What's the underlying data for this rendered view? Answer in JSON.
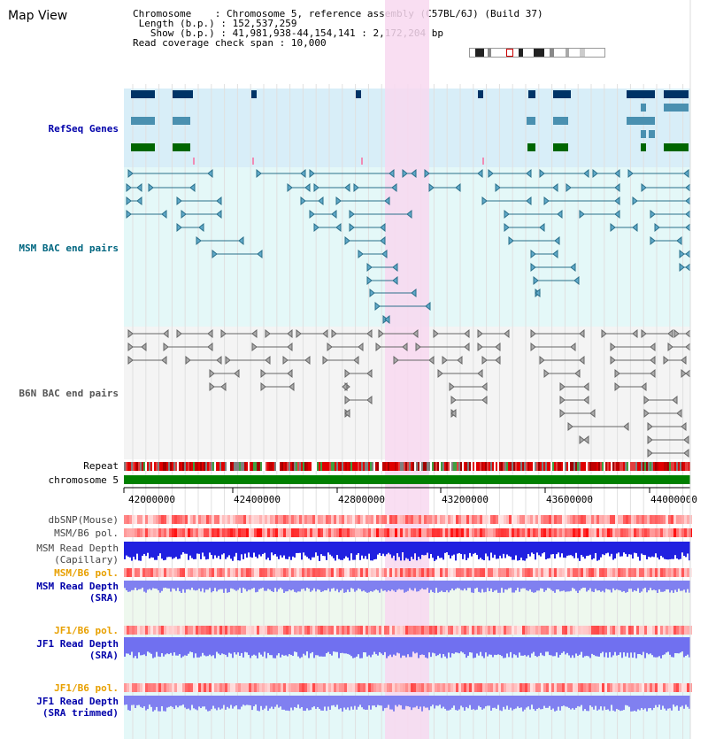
{
  "title": "Map View",
  "info": {
    "chromosome_key": "Chromosome",
    "chromosome_val": "Chromosome 5, reference assembly (C57BL/6J) (Build 37)",
    "length_key": "Length (b.p.)",
    "length_val": "152,537,259",
    "show_key": "Show (b.p.)",
    "show_val": "41,981,938-44,154,141 : 2,172,204 bp",
    "span_key": "Read coverage check span",
    "span_val": "10,000"
  },
  "tracks": {
    "refseq": "RefSeq Genes",
    "msm_bac": "MSM BAC end pairs",
    "b6n_bac": "B6N BAC end pairs",
    "repeat": "Repeat",
    "chromosome": "chromosome 5",
    "dbsnp": "dbSNP(Mouse)",
    "msm_b6_pol": "MSM/B6 pol.",
    "msm_depth_cap_1": "MSM Read Depth",
    "msm_depth_cap_2": "(Capillary)",
    "msm_b6_pol_sra": "MSM/B6 pol.",
    "msm_depth_sra_1": "MSM Read Depth",
    "msm_depth_sra_2": "(SRA)",
    "jf1_b6_pol": "JF1/B6 pol.",
    "jf1_depth_1": "JF1 Read Depth",
    "jf1_depth_2": "(SRA)",
    "jf1_b6_pol_trim": "JF1/B6 pol.",
    "jf1_depth_trim_1": "JF1 Read Depth",
    "jf1_depth_trim_2": "(SRA trimmed)"
  },
  "axis": {
    "ticks": [
      "42000000",
      "42400000",
      "42800000",
      "43200000",
      "43600000",
      "44000000"
    ]
  },
  "colors": {
    "refseq_bg": "#d8eef8",
    "msm_bg": "#e4f8f8",
    "b6n_bg": "#f4f4f4",
    "highlight": "#f8d8f0",
    "label_blue": "#0000aa",
    "label_orange": "#e8a000",
    "label_teal": "#006680"
  }
}
